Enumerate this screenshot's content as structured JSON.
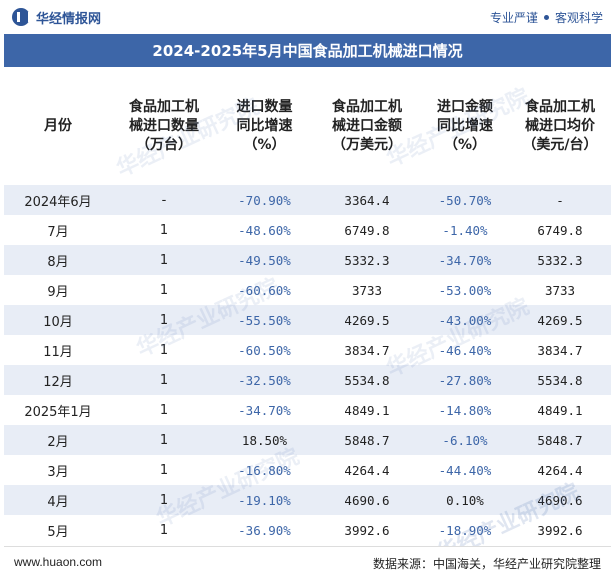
{
  "header": {
    "brand": "华经情报网",
    "tag1": "专业严谨",
    "tag2": "客观科学"
  },
  "title": "2024-2025年5月中国食品加工机械进口情况",
  "columns": [
    [
      "月份"
    ],
    [
      "食品加工机",
      "械进口数量",
      "（万台）"
    ],
    [
      "进口数量",
      "同比增速",
      "（%）"
    ],
    [
      "食品加工机",
      "械进口金额",
      "（万美元）"
    ],
    [
      "进口金额",
      "同比增速",
      "（%）"
    ],
    [
      "食品加工机",
      "械进口均价",
      "（美元/台）"
    ]
  ],
  "rows": [
    [
      "2024年6月",
      "-",
      "-70.90%",
      "3364.4",
      "-50.70%",
      "-"
    ],
    [
      "7月",
      "1",
      "-48.60%",
      "6749.8",
      "-1.40%",
      "6749.8"
    ],
    [
      "8月",
      "1",
      "-49.50%",
      "5332.3",
      "-34.70%",
      "5332.3"
    ],
    [
      "9月",
      "1",
      "-60.60%",
      "3733",
      "-53.00%",
      "3733"
    ],
    [
      "10月",
      "1",
      "-55.50%",
      "4269.5",
      "-43.00%",
      "4269.5"
    ],
    [
      "11月",
      "1",
      "-60.50%",
      "3834.7",
      "-46.40%",
      "3834.7"
    ],
    [
      "12月",
      "1",
      "-32.50%",
      "5534.8",
      "-27.80%",
      "5534.8"
    ],
    [
      "2025年1月",
      "1",
      "-34.70%",
      "4849.1",
      "-14.80%",
      "4849.1"
    ],
    [
      "2月",
      "1",
      "18.50%",
      "5848.7",
      "-6.10%",
      "5848.7"
    ],
    [
      "3月",
      "1",
      "-16.80%",
      "4264.4",
      "-44.40%",
      "4264.4"
    ],
    [
      "4月",
      "1",
      "-19.10%",
      "4690.6",
      "0.10%",
      "4690.6"
    ],
    [
      "5月",
      "1",
      "-36.90%",
      "3992.6",
      "-18.90%",
      "3992.6"
    ]
  ],
  "footer": {
    "website": "www.huaon.com",
    "source": "数据来源：中国海关，华经产业研究院整理"
  },
  "watermark": "华经产业研究院",
  "colors": {
    "title_bar": "#3d66a8",
    "stripe": "#e8edf6",
    "negative_text": "#3d66a8"
  }
}
